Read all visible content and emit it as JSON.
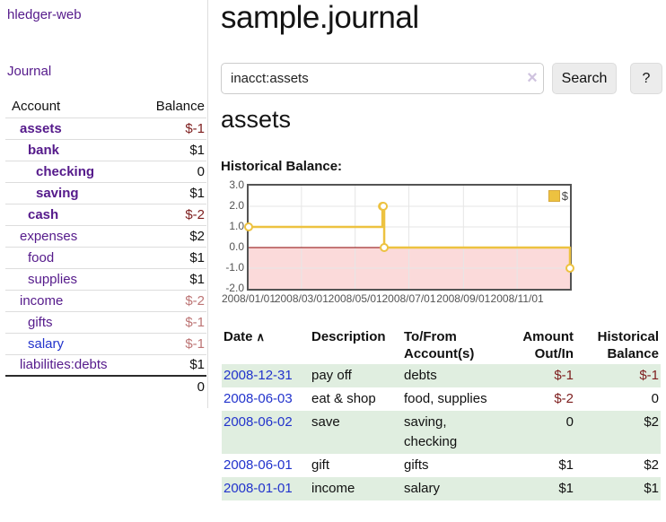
{
  "app": {
    "brand": "hledger-web",
    "nav_journal": "Journal"
  },
  "sidebar": {
    "header": {
      "account": "Account",
      "balance": "Balance"
    },
    "accounts": [
      {
        "name": "assets",
        "balance": "$-1"
      },
      {
        "name": "bank",
        "balance": "$1"
      },
      {
        "name": "checking",
        "balance": "0"
      },
      {
        "name": "saving",
        "balance": "$1"
      },
      {
        "name": "cash",
        "balance": "$-2"
      },
      {
        "name": "expenses",
        "balance": "$2"
      },
      {
        "name": "food",
        "balance": "$1"
      },
      {
        "name": "supplies",
        "balance": "$1"
      },
      {
        "name": "income",
        "balance": "$-2"
      },
      {
        "name": "gifts",
        "balance": "$-1"
      },
      {
        "name": "salary",
        "balance": "$-1"
      },
      {
        "name": "liabilities:debts",
        "balance": "$1"
      }
    ],
    "total": "0"
  },
  "header": {
    "title": "sample.journal"
  },
  "search": {
    "value": "inacct:assets",
    "clear_icon": "×",
    "search_button": "Search",
    "help_button": "?"
  },
  "account_page": {
    "heading": "assets",
    "chart_title": "Historical Balance:"
  },
  "chart_data": {
    "type": "line",
    "title": "Historical Balance",
    "legend": {
      "label": "$",
      "position": "top-right"
    },
    "series": [
      {
        "name": "$",
        "color": "#edc240",
        "steps": true,
        "points": [
          {
            "date": "2008-01-01",
            "day": 0,
            "value": 1
          },
          {
            "date": "2008-06-01",
            "day": 152,
            "value": 2
          },
          {
            "date": "2008-06-02",
            "day": 153,
            "value": 2
          },
          {
            "date": "2008-06-03",
            "day": 154,
            "value": 0
          },
          {
            "date": "2008-12-31",
            "day": 365,
            "value": -1
          }
        ]
      }
    ],
    "layout": {
      "ylim": [
        -2,
        3
      ],
      "xlim_days": [
        0,
        365
      ],
      "yticks": [
        {
          "value": 3,
          "label": "3.0"
        },
        {
          "value": 2,
          "label": "2.0"
        },
        {
          "value": 1,
          "label": "1.0"
        },
        {
          "value": 0,
          "label": "0.0"
        },
        {
          "value": -1,
          "label": "-1.0"
        },
        {
          "value": -2,
          "label": "-2.0"
        }
      ],
      "xticks": [
        {
          "day": 0,
          "label": "2008/01/01"
        },
        {
          "day": 60,
          "label": "2008/03/01"
        },
        {
          "day": 121,
          "label": "2008/05/01"
        },
        {
          "day": 182,
          "label": "2008/07/01"
        },
        {
          "day": 244,
          "label": "2008/09/01"
        },
        {
          "day": 305,
          "label": "2008/11/01"
        }
      ],
      "grid": true,
      "grid_color": "#e6e6e6",
      "zero_line_color": "#8b0000",
      "negative_region_color": "#fbdada",
      "plot_border_color": "#545454"
    }
  },
  "register": {
    "headers": [
      "Date",
      "Description",
      "To/From Account(s)",
      "Amount Out/In",
      "Historical Balance"
    ],
    "sort_indicator": "∧",
    "rows": [
      {
        "date": "2008-12-31",
        "description": "pay off",
        "accounts": "debts",
        "amount": "$-1",
        "balance": "$-1"
      },
      {
        "date": "2008-06-03",
        "description": "eat & shop",
        "accounts": "food, supplies",
        "amount": "$-2",
        "balance": "0"
      },
      {
        "date": "2008-06-02",
        "description": "save",
        "accounts": "saving, checking",
        "amount": "0",
        "balance": "$2"
      },
      {
        "date": "2008-06-01",
        "description": "gift",
        "accounts": "gifts",
        "amount": "$1",
        "balance": "$2"
      },
      {
        "date": "2008-01-01",
        "description": "income",
        "accounts": "salary",
        "amount": "$1",
        "balance": "$1"
      }
    ]
  },
  "colors": {
    "link_purple": "#551a8b",
    "link_blue": "#2233cc",
    "negative_strong": "#7d1d1d",
    "negative_soft": "#bd7575",
    "row_stripe_green": "#e0eee0",
    "series_gold": "#edc240"
  }
}
